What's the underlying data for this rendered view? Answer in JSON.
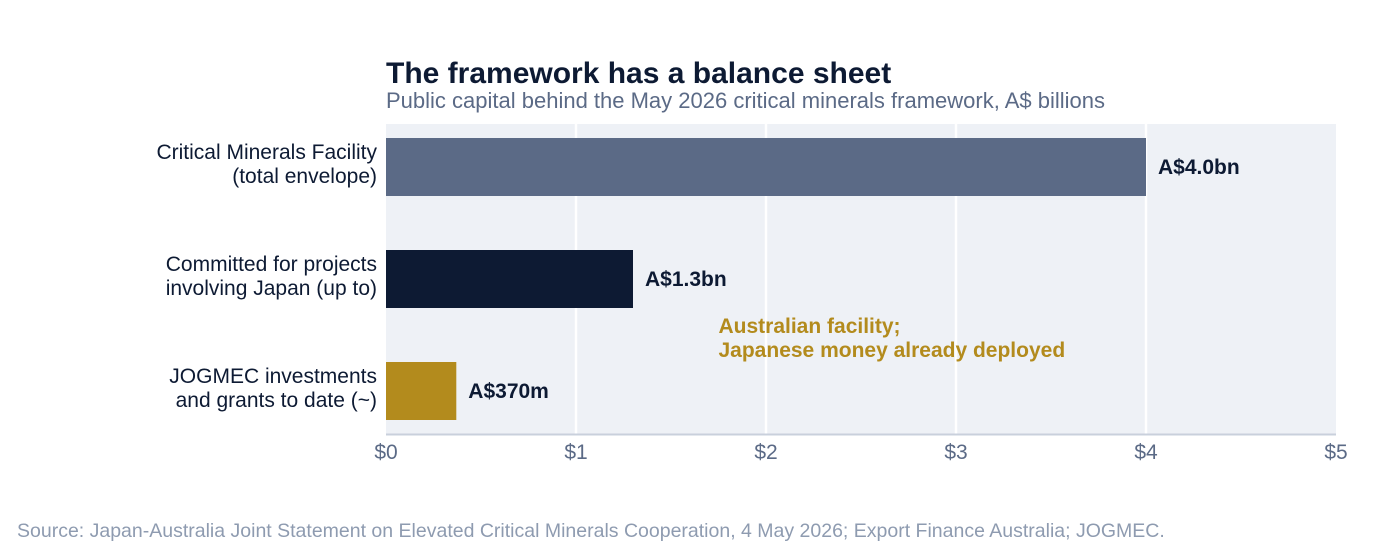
{
  "chart_data": {
    "type": "bar",
    "orientation": "horizontal",
    "title": "The framework has a balance sheet",
    "subtitle": "Public capital behind the May 2026 critical minerals framework, A$ billions",
    "categories": [
      [
        "Critical Minerals Facility",
        "(total envelope)"
      ],
      [
        "Committed for projects",
        "involving Japan (up to)"
      ],
      [
        "JOGMEC investments",
        "and grants to date (~)"
      ]
    ],
    "values": [
      4.0,
      1.3,
      0.37
    ],
    "value_labels": [
      "A$4.0bn",
      "A$1.3bn",
      "A$370m"
    ],
    "bar_colors": [
      "#5b6a86",
      "#0d1a33",
      "#b38b1d"
    ],
    "xlim": [
      0,
      5
    ],
    "x_ticks": [
      0,
      1,
      2,
      3,
      4,
      5
    ],
    "x_tick_labels": [
      "$0",
      "$1",
      "$2",
      "$3",
      "$4",
      "$5"
    ],
    "xlabel": "",
    "ylabel": "",
    "grid": "vertical",
    "legend": "none",
    "annotation": {
      "lines": [
        "Australian facility;",
        "Japanese money already deployed"
      ],
      "x": 1.75,
      "color": "#b38b1d"
    },
    "source": "Source: Japan-Australia Joint Statement on Elevated Critical Minerals Cooperation, 4 May 2026; Export Finance Australia; JOGMEC.",
    "plot_background": "#eef1f6"
  }
}
